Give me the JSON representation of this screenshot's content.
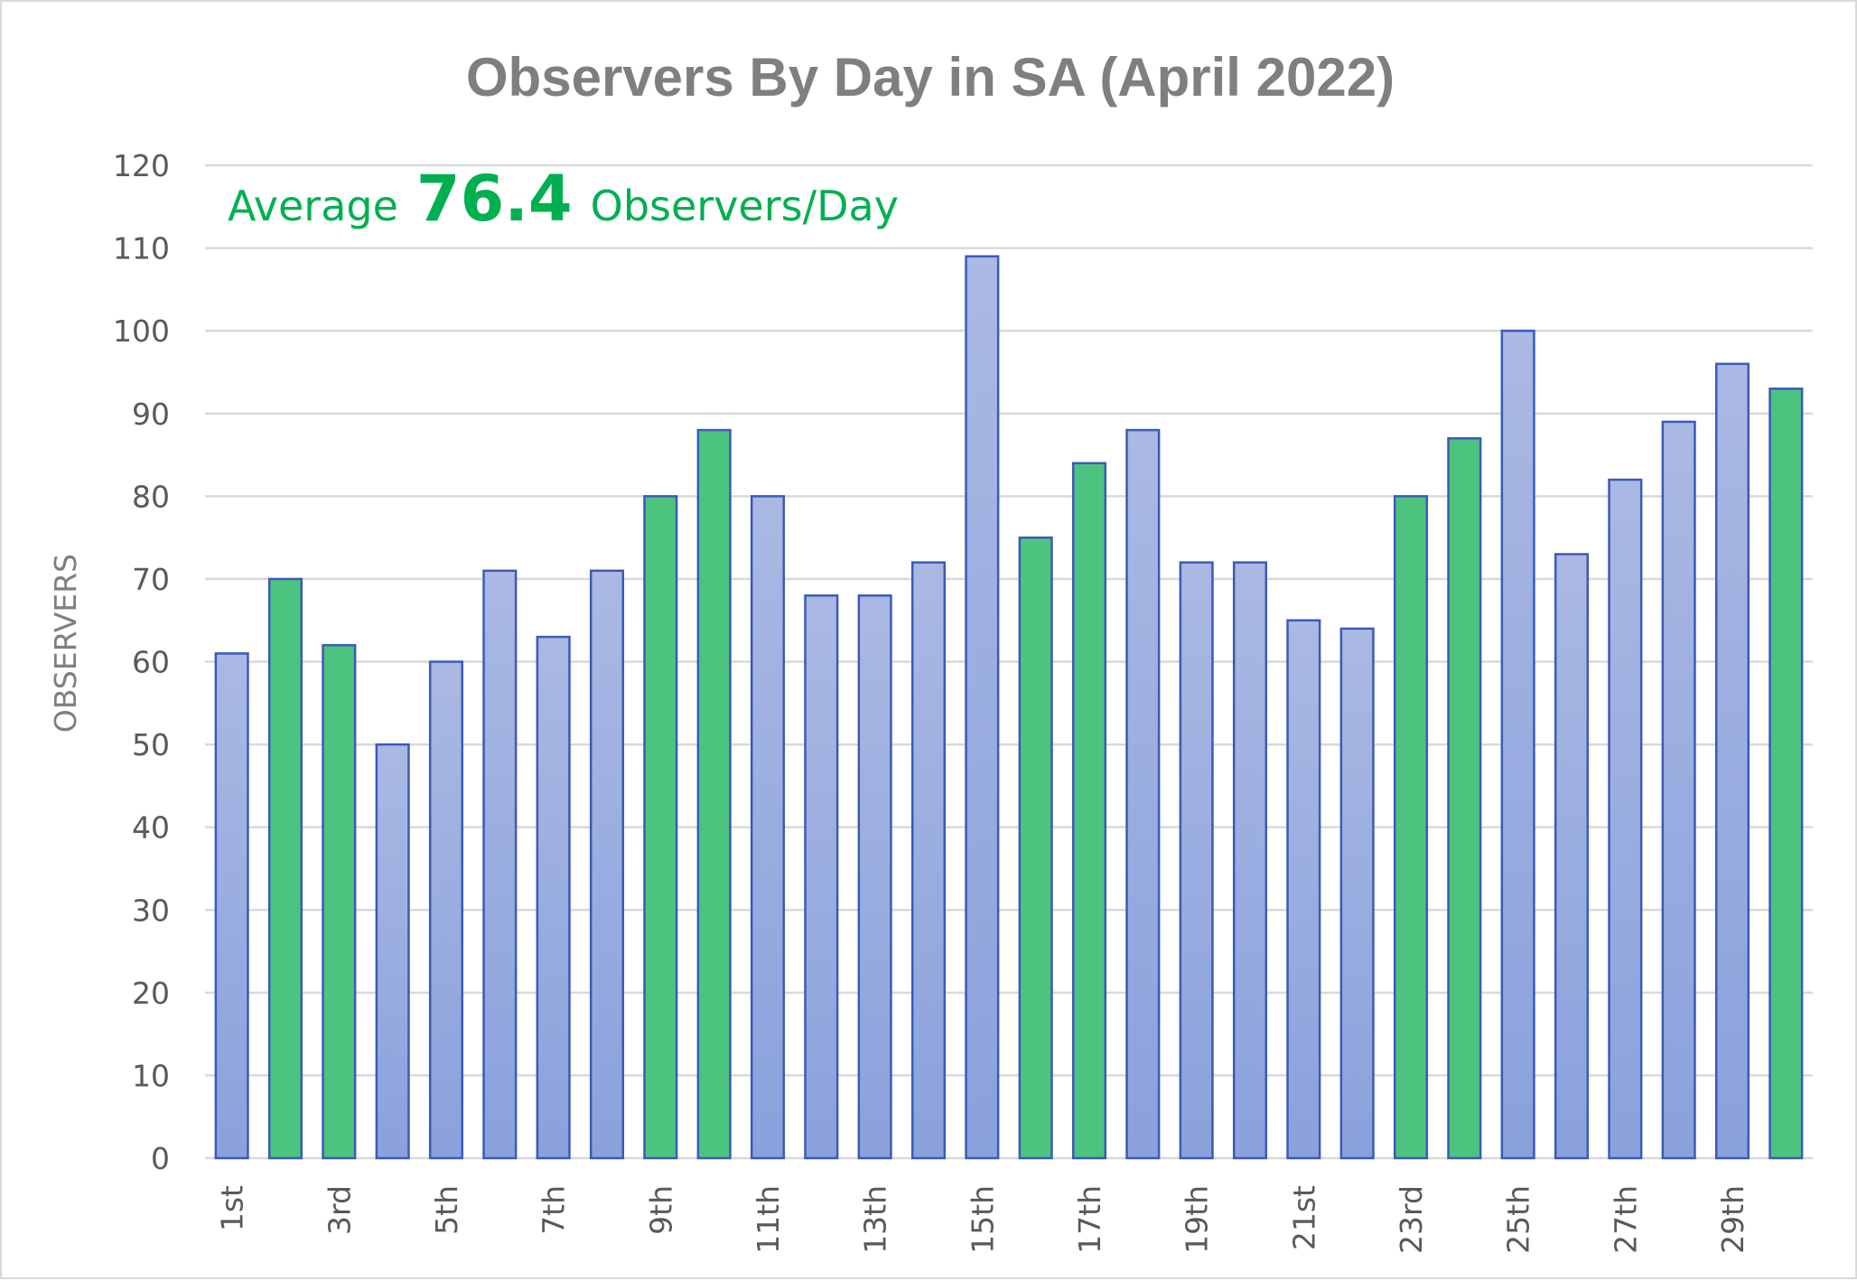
{
  "chart_data": {
    "type": "bar",
    "title": "Observers By Day in SA (April 2022)",
    "xlabel": "",
    "ylabel": "OBSERVERS",
    "ylim": [
      0,
      120
    ],
    "yticks": [
      0,
      10,
      20,
      30,
      40,
      50,
      60,
      70,
      80,
      90,
      100,
      110,
      120
    ],
    "grid": true,
    "legend": "none",
    "categories": [
      "1st",
      "2nd",
      "3rd",
      "4th",
      "5th",
      "6th",
      "7th",
      "8th",
      "9th",
      "10th",
      "11th",
      "12th",
      "13th",
      "14th",
      "15th",
      "16th",
      "17th",
      "18th",
      "19th",
      "20th",
      "21st",
      "22nd",
      "23rd",
      "24th",
      "25th",
      "26th",
      "27th",
      "28th",
      "29th",
      "30th"
    ],
    "xtick_labels_shown": [
      "1st",
      "3rd",
      "5th",
      "7th",
      "9th",
      "11th",
      "13th",
      "15th",
      "17th",
      "19th",
      "21st",
      "23rd",
      "25th",
      "27th",
      "29th"
    ],
    "values": [
      61,
      70,
      62,
      50,
      60,
      71,
      63,
      71,
      80,
      88,
      80,
      68,
      68,
      72,
      109,
      75,
      84,
      88,
      72,
      72,
      65,
      64,
      80,
      87,
      100,
      73,
      82,
      89,
      96,
      93
    ],
    "highlighted": [
      false,
      true,
      true,
      false,
      false,
      false,
      false,
      false,
      true,
      true,
      false,
      false,
      false,
      false,
      false,
      true,
      true,
      false,
      false,
      false,
      false,
      false,
      true,
      true,
      false,
      false,
      false,
      false,
      false,
      true
    ],
    "annotation": {
      "prefix": "Average",
      "value": "76.4",
      "suffix": "Observers/Day"
    }
  },
  "colors": {
    "bar_default_top": "#aab9e3",
    "bar_default_bottom": "#8aa1dc",
    "bar_highlight": "#4cc47f",
    "bar_border": "#3b5ab8",
    "gridline": "#d9d9d9",
    "title": "#7f7f7f",
    "tick_text": "#595959",
    "annotation": "#00b050"
  }
}
